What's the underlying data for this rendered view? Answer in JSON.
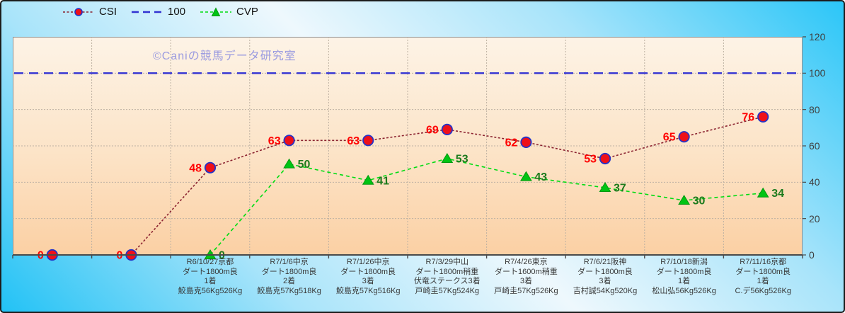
{
  "watermark": "©Caniの競馬データ研究室",
  "colors": {
    "background_cyan": "#2bc6f8",
    "background_light": "#eef8fd",
    "plot_top": "#fdf3e6",
    "plot_bottom": "#fbd0a4",
    "gridline": "#bdb1a2",
    "axis": "#4a4a4a"
  },
  "chart_data": {
    "type": "line",
    "title": "",
    "xlabel": "",
    "ylabel": "",
    "ylim": [
      0,
      120
    ],
    "y_ticks": [
      0,
      20,
      40,
      60,
      80,
      100,
      120
    ],
    "grid": true,
    "legend_position": "top",
    "categories": [
      {
        "lines": []
      },
      {
        "lines": []
      },
      {
        "lines": [
          "R6/10/27京都",
          "ダート1800m良",
          "1着",
          "鮫島克56Kg526Kg"
        ]
      },
      {
        "lines": [
          "R7/1/6中京",
          "ダート1800m良",
          "2着",
          "鮫島克57Kg518Kg"
        ]
      },
      {
        "lines": [
          "R7/1/26中京",
          "ダート1800m良",
          "3着",
          "鮫島克57Kg516Kg"
        ]
      },
      {
        "lines": [
          "R7/3/29中山",
          "ダート1800m稍重",
          "伏竜ステークス3着",
          "戸崎圭57Kg524Kg"
        ]
      },
      {
        "lines": [
          "R7/4/26東京",
          "ダート1600m稍重",
          "3着",
          "戸崎圭57Kg526Kg"
        ]
      },
      {
        "lines": [
          "R7/6/21阪神",
          "ダート1800m良",
          "3着",
          "吉村誠54Kg520Kg"
        ]
      },
      {
        "lines": [
          "R7/10/18新潟",
          "ダート1800m良",
          "1着",
          "松山弘56Kg526Kg"
        ]
      },
      {
        "lines": [
          "R7/11/16京都",
          "ダート1800m良",
          "1着",
          "C.デ56Kg526Kg"
        ]
      }
    ],
    "series": [
      {
        "name": "CSI",
        "marker": "circle",
        "values": [
          0,
          0,
          48,
          63,
          63,
          69,
          62,
          53,
          65,
          76
        ],
        "line_color": "#8b2230",
        "marker_fill": "#ee1019",
        "marker_edge": "#2433c8",
        "label_color": "#ff0000",
        "label_side": "left"
      },
      {
        "name": "100",
        "marker": "none",
        "constant": 100,
        "values": null,
        "line_color": "#3232d2",
        "label_side": "none"
      },
      {
        "name": "CVP",
        "marker": "triangle",
        "values": [
          null,
          null,
          0,
          50,
          41,
          53,
          43,
          37,
          30,
          34
        ],
        "line_color": "#00dc12",
        "marker_fill": "#00c414",
        "marker_edge": "#00990e",
        "label_color": "#1c7a1c",
        "label_side": "right"
      }
    ]
  }
}
